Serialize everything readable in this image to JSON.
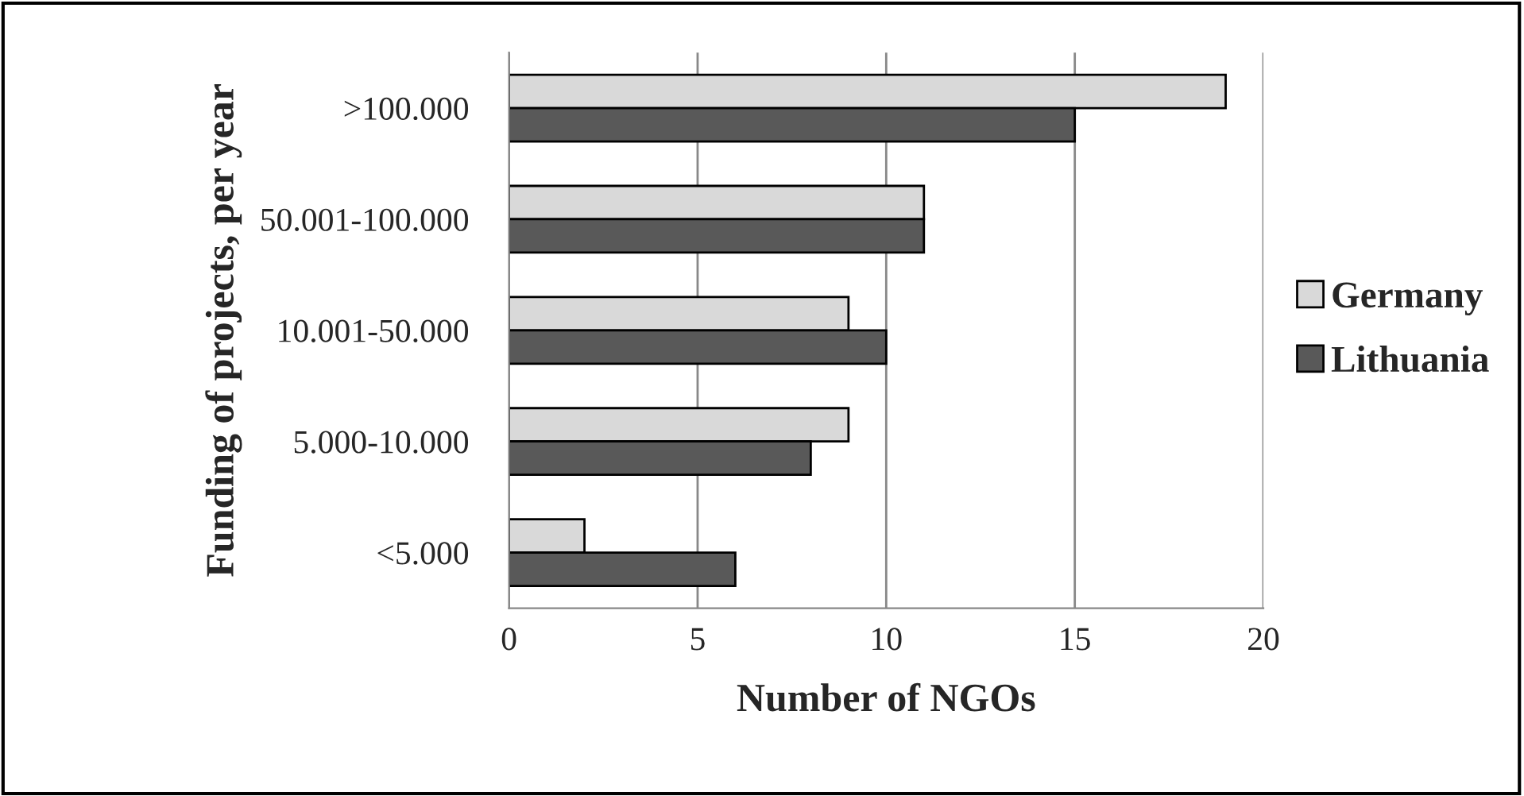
{
  "chart_data": {
    "type": "bar",
    "orientation": "horizontal",
    "xlabel": "Number of NGOs",
    "ylabel": "Funding of projects, per year",
    "categories": [
      ">100.000",
      "50.001-100.000",
      "10.001-50.000",
      "5.000-10.000",
      "<5.000"
    ],
    "series": [
      {
        "name": "Germany",
        "color": "#d9d9d9",
        "values": [
          19,
          11,
          9,
          9,
          2
        ]
      },
      {
        "name": "Lithuania",
        "color": "#595959",
        "values": [
          15,
          11,
          10,
          8,
          6
        ]
      }
    ],
    "xlim": [
      0,
      20
    ],
    "xticks": [
      0,
      5,
      10,
      15,
      20
    ],
    "grid": "x",
    "legend": "right"
  }
}
